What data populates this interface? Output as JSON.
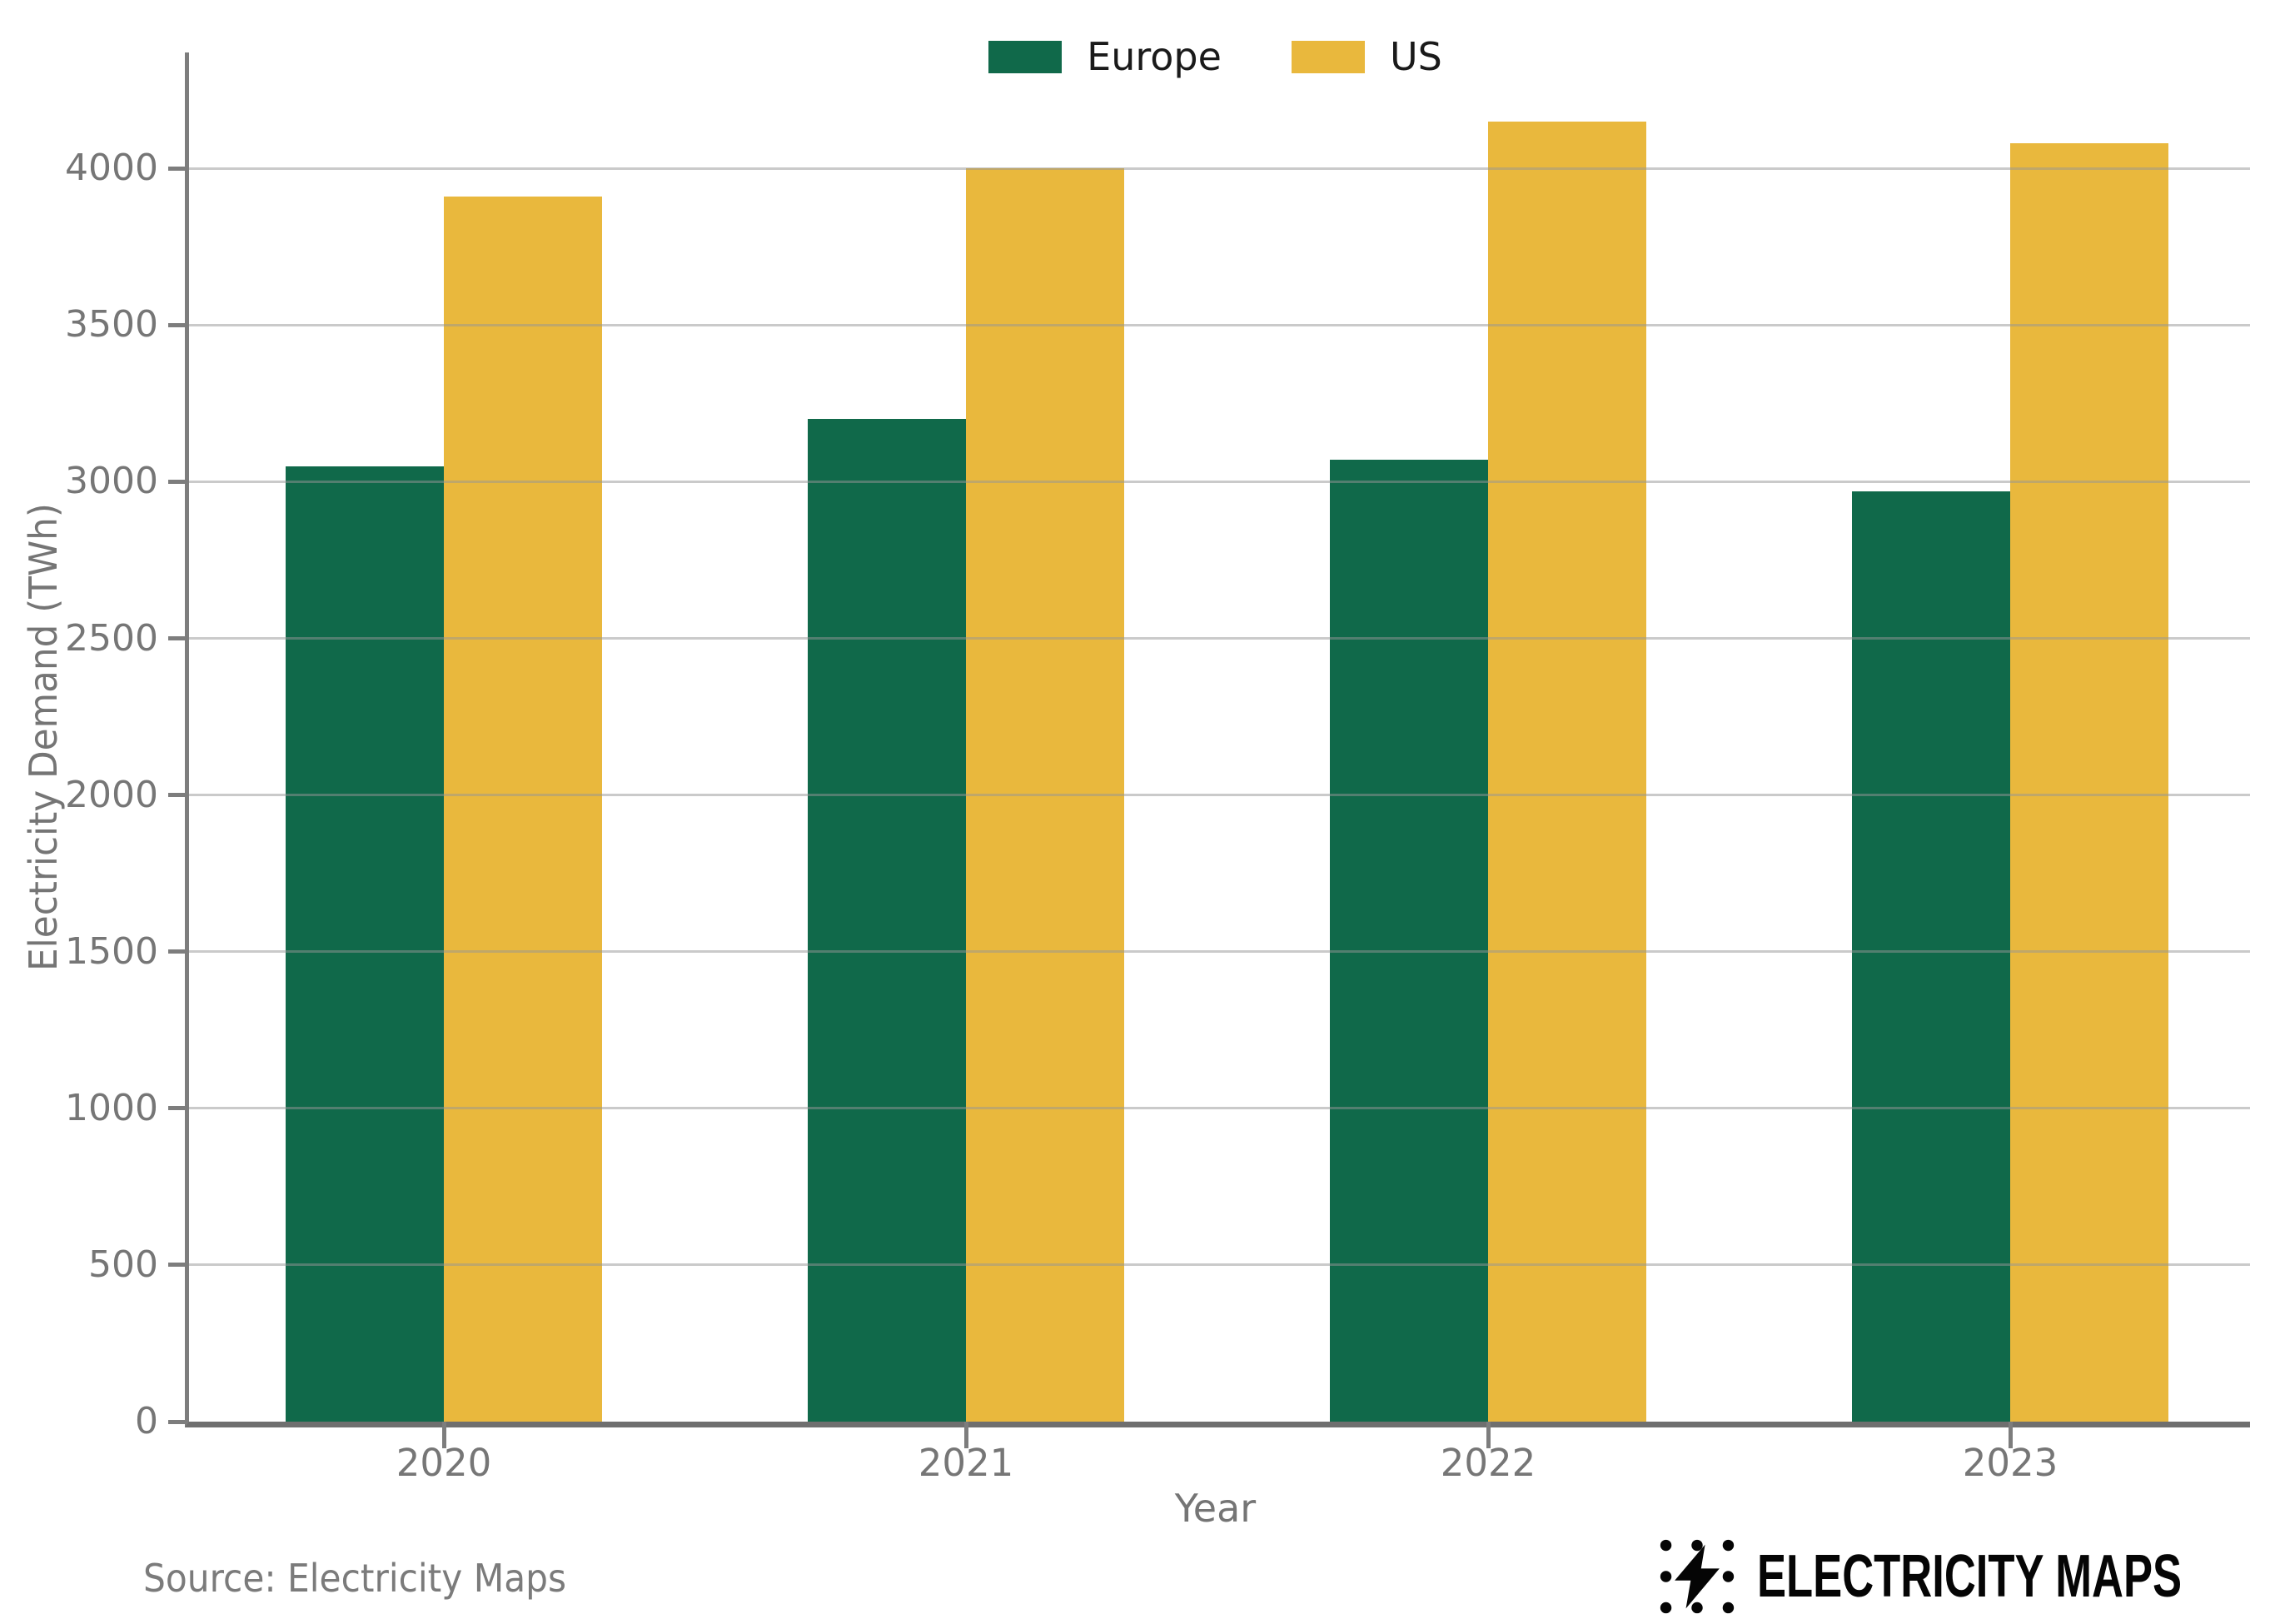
{
  "chart_data": {
    "type": "bar",
    "categories": [
      "2020",
      "2021",
      "2022",
      "2023"
    ],
    "series": [
      {
        "name": "Europe",
        "color": "#10694a",
        "values": [
          3050,
          3200,
          3070,
          2970
        ]
      },
      {
        "name": "US",
        "color": "#e9b83d",
        "values": [
          3910,
          4000,
          4150,
          4080
        ]
      }
    ],
    "title": "",
    "xlabel": "Year",
    "ylabel": "Electricity Demand (TWh)",
    "ylim": [
      0,
      4370
    ],
    "yticks": [
      0,
      500,
      1000,
      1500,
      2000,
      2500,
      3000,
      3500,
      4000
    ],
    "grid": "horizontal",
    "legend_position": "top center"
  },
  "footer": {
    "source": "Source: Electricity Maps",
    "brand": "ELECTRICITY MAPS"
  },
  "colors": {
    "europe_green": "#10694a",
    "us_yellow": "#e9b83d",
    "gridline_gray": "#c9c9c9",
    "axis_gray": "#7d7d7d",
    "tick_text_gray": "#767676",
    "background": "#ffffff",
    "logo_black": "#050505"
  }
}
